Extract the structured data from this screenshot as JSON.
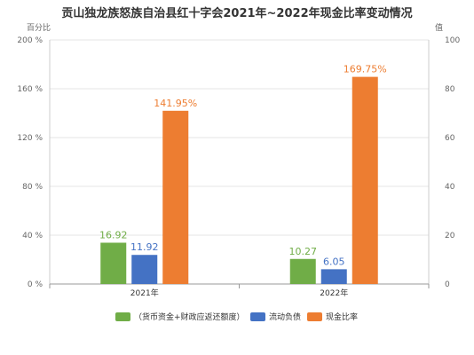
{
  "chart_data": {
    "type": "bar",
    "title": "贡山独龙族怒族自治县红十字会2021年~2022年现金比率变动情况",
    "categories": [
      "2021年",
      "2022年"
    ],
    "series": [
      {
        "name": "（货币资金+财政应返还额度）",
        "axis": "right",
        "color": "#70ad47",
        "values": [
          16.92,
          10.27
        ],
        "labels": [
          "16.92",
          "10.27"
        ]
      },
      {
        "name": "流动负债",
        "axis": "right",
        "color": "#4472c4",
        "values": [
          11.92,
          6.05
        ],
        "labels": [
          "11.92",
          "6.05"
        ]
      },
      {
        "name": "现金比率",
        "axis": "left",
        "color": "#ed7d31",
        "values": [
          141.95,
          169.75
        ],
        "labels": [
          "141.95%",
          "169.75%"
        ]
      }
    ],
    "y_left": {
      "name": "百分比",
      "min": 0,
      "max": 200,
      "ticks": [
        0,
        40,
        80,
        120,
        160,
        200
      ],
      "tick_labels": [
        "0 %",
        "40 %",
        "80 %",
        "120 %",
        "160 %",
        "200 %"
      ]
    },
    "y_right": {
      "name": "值",
      "min": 0,
      "max": 100,
      "ticks": [
        0,
        20,
        40,
        60,
        80,
        100
      ],
      "tick_labels": [
        "0",
        "20",
        "40",
        "60",
        "80",
        "100"
      ]
    },
    "grid": true,
    "legend": "bottom"
  }
}
